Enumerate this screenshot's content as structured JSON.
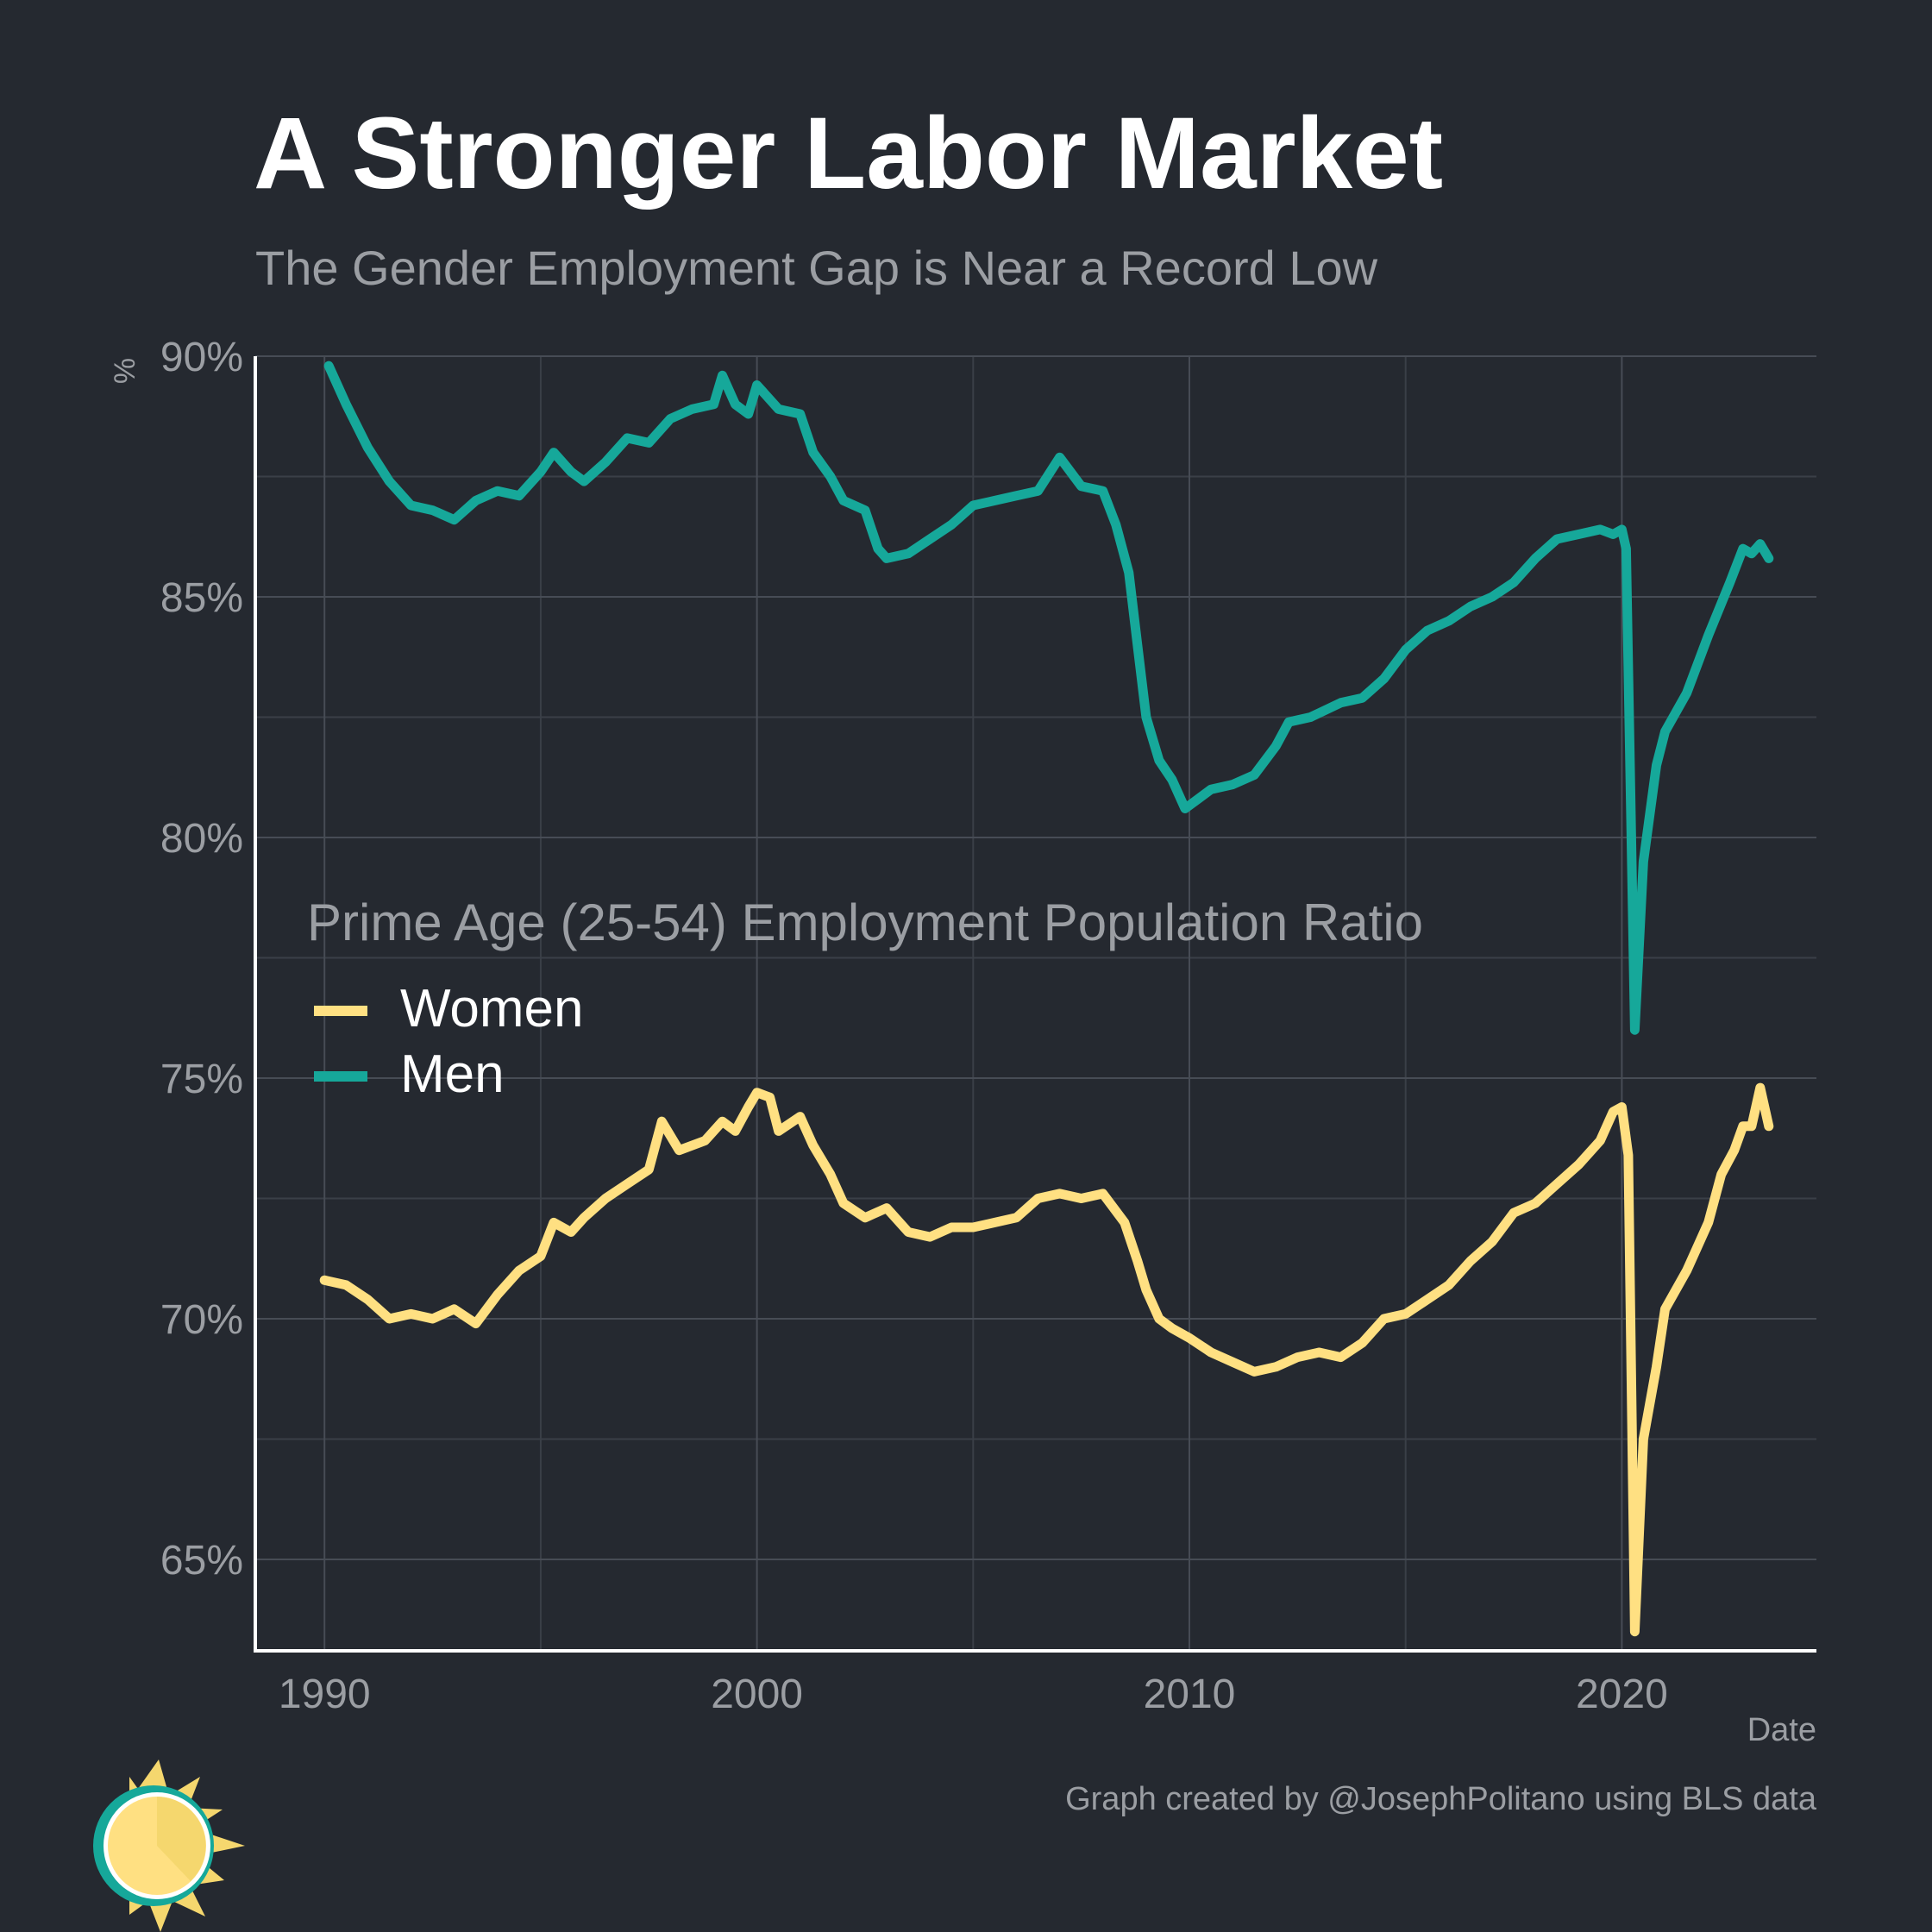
{
  "chart_data": {
    "type": "line",
    "title": "A Stronger Labor Market",
    "subtitle": "The Gender Employment Gap is Near a Record Low",
    "xlabel": "Date",
    "ylabel": "%",
    "caption": "Graph created by @JosephPolitano using BLS data",
    "legend_title": "Prime Age (25-54) Employment Population Ratio",
    "legend_position": "center-left",
    "grid": true,
    "xlim": [
      1988.4,
      2024.5
    ],
    "ylim": [
      63.1,
      90.0
    ],
    "x_ticks": [
      1990,
      2000,
      2010,
      2020
    ],
    "x_tick_labels": [
      "1990",
      "2000",
      "2010",
      "2020"
    ],
    "y_ticks": [
      65,
      70,
      75,
      80,
      85,
      90
    ],
    "y_tick_labels": [
      "65%",
      "70%",
      "75%",
      "80%",
      "85%",
      "90%"
    ],
    "series": [
      {
        "name": "Women",
        "color": "#FFE082",
        "points": [
          [
            1990.0,
            70.8
          ],
          [
            1990.5,
            70.7
          ],
          [
            1991.0,
            70.4
          ],
          [
            1991.5,
            70.0
          ],
          [
            1992.0,
            70.1
          ],
          [
            1992.5,
            70.0
          ],
          [
            1993.0,
            70.2
          ],
          [
            1993.5,
            69.9
          ],
          [
            1994.0,
            70.5
          ],
          [
            1994.5,
            71.0
          ],
          [
            1995.0,
            71.3
          ],
          [
            1995.3,
            72.0
          ],
          [
            1995.7,
            71.8
          ],
          [
            1996.0,
            72.1
          ],
          [
            1996.5,
            72.5
          ],
          [
            1997.0,
            72.8
          ],
          [
            1997.5,
            73.1
          ],
          [
            1997.8,
            74.1
          ],
          [
            1998.2,
            73.5
          ],
          [
            1998.8,
            73.7
          ],
          [
            1999.2,
            74.1
          ],
          [
            1999.5,
            73.9
          ],
          [
            1999.8,
            74.4
          ],
          [
            2000.0,
            74.7
          ],
          [
            2000.3,
            74.6
          ],
          [
            2000.5,
            73.9
          ],
          [
            2001.0,
            74.2
          ],
          [
            2001.3,
            73.6
          ],
          [
            2001.7,
            73.0
          ],
          [
            2002.0,
            72.4
          ],
          [
            2002.5,
            72.1
          ],
          [
            2003.0,
            72.3
          ],
          [
            2003.5,
            71.8
          ],
          [
            2004.0,
            71.7
          ],
          [
            2004.5,
            71.9
          ],
          [
            2005.0,
            71.9
          ],
          [
            2005.5,
            72.0
          ],
          [
            2006.0,
            72.1
          ],
          [
            2006.5,
            72.5
          ],
          [
            2007.0,
            72.6
          ],
          [
            2007.5,
            72.5
          ],
          [
            2008.0,
            72.6
          ],
          [
            2008.5,
            72.0
          ],
          [
            2008.8,
            71.2
          ],
          [
            2009.0,
            70.6
          ],
          [
            2009.3,
            70.0
          ],
          [
            2009.6,
            69.8
          ],
          [
            2010.0,
            69.6
          ],
          [
            2010.5,
            69.3
          ],
          [
            2011.0,
            69.1
          ],
          [
            2011.5,
            68.9
          ],
          [
            2012.0,
            69.0
          ],
          [
            2012.5,
            69.2
          ],
          [
            2013.0,
            69.3
          ],
          [
            2013.5,
            69.2
          ],
          [
            2014.0,
            69.5
          ],
          [
            2014.5,
            70.0
          ],
          [
            2015.0,
            70.1
          ],
          [
            2015.5,
            70.4
          ],
          [
            2016.0,
            70.7
          ],
          [
            2016.5,
            71.2
          ],
          [
            2017.0,
            71.6
          ],
          [
            2017.5,
            72.2
          ],
          [
            2018.0,
            72.4
          ],
          [
            2018.5,
            72.8
          ],
          [
            2019.0,
            73.2
          ],
          [
            2019.5,
            73.7
          ],
          [
            2019.8,
            74.3
          ],
          [
            2020.0,
            74.4
          ],
          [
            2020.15,
            73.4
          ],
          [
            2020.3,
            63.5
          ],
          [
            2020.5,
            67.5
          ],
          [
            2020.8,
            69.0
          ],
          [
            2021.0,
            70.2
          ],
          [
            2021.5,
            71.0
          ],
          [
            2022.0,
            72.0
          ],
          [
            2022.3,
            73.0
          ],
          [
            2022.6,
            73.5
          ],
          [
            2022.8,
            74.0
          ],
          [
            2023.0,
            74.0
          ],
          [
            2023.2,
            74.8
          ],
          [
            2023.4,
            74.0
          ]
        ]
      },
      {
        "name": "Men",
        "color": "#16A89A",
        "points": [
          [
            1990.1,
            89.8
          ],
          [
            1990.5,
            89.0
          ],
          [
            1991.0,
            88.1
          ],
          [
            1991.5,
            87.4
          ],
          [
            1992.0,
            86.9
          ],
          [
            1992.5,
            86.8
          ],
          [
            1993.0,
            86.6
          ],
          [
            1993.5,
            87.0
          ],
          [
            1994.0,
            87.2
          ],
          [
            1994.5,
            87.1
          ],
          [
            1995.0,
            87.6
          ],
          [
            1995.3,
            88.0
          ],
          [
            1995.7,
            87.6
          ],
          [
            1996.0,
            87.4
          ],
          [
            1996.5,
            87.8
          ],
          [
            1997.0,
            88.3
          ],
          [
            1997.5,
            88.2
          ],
          [
            1998.0,
            88.7
          ],
          [
            1998.5,
            88.9
          ],
          [
            1999.0,
            89.0
          ],
          [
            1999.2,
            89.6
          ],
          [
            1999.5,
            89.0
          ],
          [
            1999.8,
            88.8
          ],
          [
            2000.0,
            89.4
          ],
          [
            2000.5,
            88.9
          ],
          [
            2001.0,
            88.8
          ],
          [
            2001.3,
            88.0
          ],
          [
            2001.7,
            87.5
          ],
          [
            2002.0,
            87.0
          ],
          [
            2002.5,
            86.8
          ],
          [
            2002.8,
            86.0
          ],
          [
            2003.0,
            85.8
          ],
          [
            2003.5,
            85.9
          ],
          [
            2004.0,
            86.2
          ],
          [
            2004.5,
            86.5
          ],
          [
            2005.0,
            86.9
          ],
          [
            2005.5,
            87.0
          ],
          [
            2006.0,
            87.1
          ],
          [
            2006.5,
            87.2
          ],
          [
            2007.0,
            87.9
          ],
          [
            2007.5,
            87.3
          ],
          [
            2008.0,
            87.2
          ],
          [
            2008.3,
            86.5
          ],
          [
            2008.6,
            85.5
          ],
          [
            2008.8,
            84.0
          ],
          [
            2009.0,
            82.5
          ],
          [
            2009.3,
            81.6
          ],
          [
            2009.6,
            81.2
          ],
          [
            2009.9,
            80.6
          ],
          [
            2010.2,
            80.8
          ],
          [
            2010.5,
            81.0
          ],
          [
            2011.0,
            81.1
          ],
          [
            2011.5,
            81.3
          ],
          [
            2012.0,
            81.9
          ],
          [
            2012.3,
            82.4
          ],
          [
            2012.8,
            82.5
          ],
          [
            2013.5,
            82.8
          ],
          [
            2014.0,
            82.9
          ],
          [
            2014.5,
            83.3
          ],
          [
            2015.0,
            83.9
          ],
          [
            2015.5,
            84.3
          ],
          [
            2016.0,
            84.5
          ],
          [
            2016.5,
            84.8
          ],
          [
            2017.0,
            85.0
          ],
          [
            2017.5,
            85.3
          ],
          [
            2018.0,
            85.8
          ],
          [
            2018.5,
            86.2
          ],
          [
            2019.0,
            86.3
          ],
          [
            2019.5,
            86.4
          ],
          [
            2019.8,
            86.3
          ],
          [
            2020.0,
            86.4
          ],
          [
            2020.1,
            86.0
          ],
          [
            2020.3,
            76.0
          ],
          [
            2020.5,
            79.5
          ],
          [
            2020.8,
            81.5
          ],
          [
            2021.0,
            82.2
          ],
          [
            2021.5,
            83.0
          ],
          [
            2022.0,
            84.2
          ],
          [
            2022.5,
            85.3
          ],
          [
            2022.8,
            86.0
          ],
          [
            2023.0,
            85.9
          ],
          [
            2023.2,
            86.1
          ],
          [
            2023.4,
            85.8
          ]
        ]
      }
    ]
  },
  "logo": {
    "name": "sun-logo",
    "colors": [
      "#F5D76E",
      "#16A89A",
      "#FFE082"
    ]
  }
}
